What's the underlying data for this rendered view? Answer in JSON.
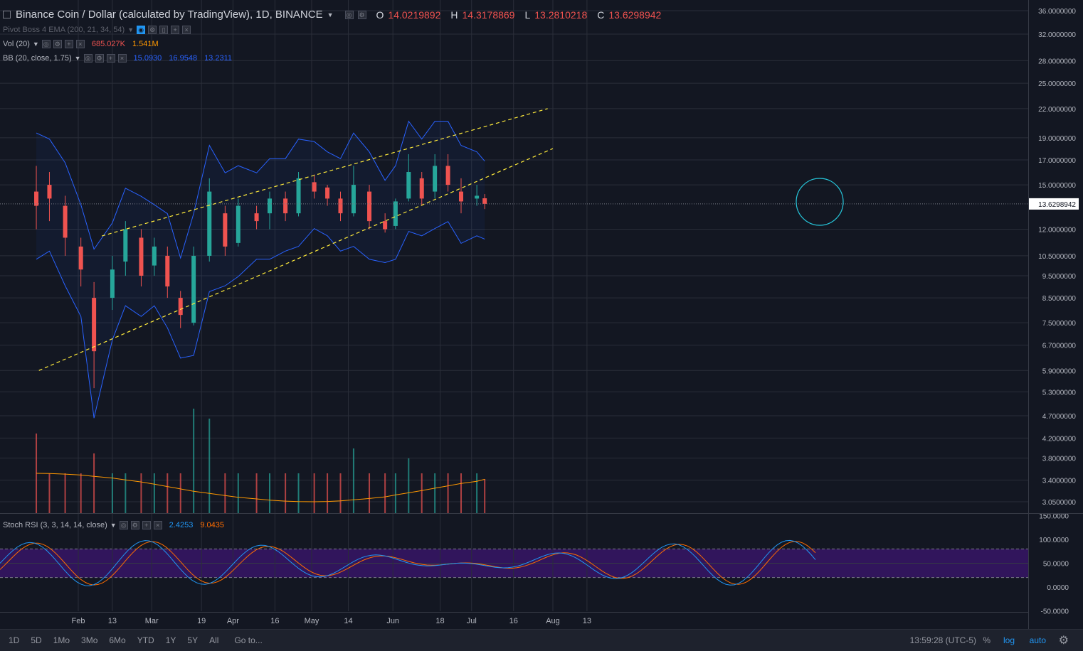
{
  "header": {
    "title": "Binance Coin / Dollar (calculated by TradingView), 1D, BINANCE",
    "o_label": "O",
    "o_value": "14.0219892",
    "h_label": "H",
    "h_value": "14.3178869",
    "l_label": "L",
    "l_value": "13.2810218",
    "c_label": "C",
    "c_value": "13.6298942"
  },
  "indicators": [
    {
      "name": "Pivot Boss 4 EMA (200, 21, 34, 54)",
      "values": []
    },
    {
      "name": "Vol (20)",
      "values": [
        "685.027K",
        "1.541M"
      ],
      "colors": [
        "#ef5350",
        "#ff9800"
      ]
    },
    {
      "name": "BB (20, close, 1.75)",
      "values": [
        "15.0930",
        "16.9548",
        "13.2311"
      ],
      "colors": [
        "#2962ff",
        "#2962ff",
        "#2962ff"
      ]
    }
  ],
  "stoch": {
    "name": "Stoch RSI (3, 3, 14, 14, close)",
    "k": "2.4253",
    "d": "9.0435",
    "k_color": "#2196f3",
    "d_color": "#ff6d00"
  },
  "price_axis": {
    "labels": [
      "36.0000000",
      "32.0000000",
      "28.0000000",
      "25.0000000",
      "22.0000000",
      "19.0000000",
      "17.0000000",
      "15.0000000",
      "13.6298942",
      "12.0000000",
      "10.5000000",
      "9.5000000",
      "8.5000000",
      "7.5000000",
      "6.7000000",
      "5.9000000",
      "5.3000000",
      "4.7000000",
      "4.2000000",
      "3.8000000",
      "3.4000000",
      "3.0500000"
    ],
    "current": "13.6298942"
  },
  "stoch_axis": {
    "labels": [
      "150.0000",
      "100.0000",
      "50.0000",
      "0.0000",
      "-50.0000"
    ]
  },
  "time_axis": {
    "labels": [
      "Feb",
      "13",
      "Mar",
      "19",
      "Apr",
      "16",
      "May",
      "14",
      "Jun",
      "18",
      "Jul",
      "16",
      "Aug",
      "13"
    ]
  },
  "bottom_bar": {
    "ranges": [
      "1D",
      "5D",
      "1Mo",
      "3Mo",
      "6Mo",
      "YTD",
      "1Y",
      "5Y",
      "All"
    ],
    "goto": "Go to...",
    "clock": "13:59:28 (UTC-5)",
    "percent": "%",
    "log": "log",
    "auto": "auto"
  },
  "colors": {
    "up": "#26a69a",
    "down": "#ef5350",
    "bb": "#2962ff",
    "trend": "#ffeb3b",
    "vol_ma": "#ff9800",
    "circle": "#26c6da",
    "stoch_band": "#4a148c"
  },
  "chart_data": {
    "type": "candlestick",
    "title": "Binance Coin / Dollar (calculated by TradingView), 1D, BINANCE",
    "scale": "log",
    "series": [
      {
        "name": "price",
        "points": [
          [
            "01-15",
            14.5,
            16.5,
            12.0,
            13.5
          ],
          [
            "01-20",
            15.0,
            16.0,
            12.5,
            14.0
          ],
          [
            "01-26",
            13.5,
            14.2,
            10.5,
            11.5
          ],
          [
            "02-01",
            11.0,
            11.5,
            9.0,
            9.8
          ],
          [
            "02-06",
            8.5,
            9.2,
            5.4,
            6.5
          ],
          [
            "02-13",
            8.5,
            10.5,
            8.0,
            9.8
          ],
          [
            "02-18",
            10.2,
            12.5,
            9.5,
            12.0
          ],
          [
            "02-24",
            11.5,
            12.0,
            9.0,
            9.5
          ],
          [
            "03-01",
            10.0,
            11.5,
            9.5,
            11.0
          ],
          [
            "03-06",
            10.5,
            11.0,
            8.5,
            9.0
          ],
          [
            "03-11",
            8.5,
            8.8,
            7.3,
            7.8
          ],
          [
            "03-16",
            7.5,
            11.0,
            7.4,
            10.5
          ],
          [
            "03-22",
            10.5,
            15.5,
            10.2,
            14.5
          ],
          [
            "03-28",
            13.0,
            13.5,
            10.5,
            11.0
          ],
          [
            "04-02",
            11.2,
            14.0,
            11.0,
            13.5
          ],
          [
            "04-09",
            13.0,
            13.5,
            12.0,
            12.5
          ],
          [
            "04-14",
            13.0,
            14.5,
            12.0,
            14.0
          ],
          [
            "04-20",
            14.0,
            14.5,
            12.5,
            13.0
          ],
          [
            "04-25",
            13.0,
            16.0,
            12.8,
            15.5
          ],
          [
            "05-01",
            15.2,
            15.8,
            14.0,
            14.5
          ],
          [
            "05-06",
            14.8,
            15.0,
            13.5,
            14.0
          ],
          [
            "05-11",
            14.0,
            14.5,
            12.5,
            13.0
          ],
          [
            "05-16",
            13.0,
            16.5,
            12.8,
            15.0
          ],
          [
            "05-22",
            14.5,
            15.0,
            12.0,
            12.5
          ],
          [
            "05-28",
            12.5,
            13.0,
            11.8,
            12.0
          ],
          [
            "06-01",
            12.2,
            14.0,
            12.0,
            13.8
          ],
          [
            "06-06",
            14.0,
            17.5,
            13.8,
            16.0
          ],
          [
            "06-11",
            15.5,
            16.0,
            13.5,
            14.0
          ],
          [
            "06-16",
            14.5,
            17.5,
            14.0,
            16.5
          ],
          [
            "06-21",
            16.5,
            17.5,
            14.5,
            15.0
          ],
          [
            "06-26",
            14.5,
            15.5,
            13.0,
            13.8
          ],
          [
            "07-02",
            14.0,
            15.0,
            13.5,
            14.2
          ],
          [
            "07-05",
            14.02,
            14.32,
            13.28,
            13.63
          ]
        ]
      },
      {
        "name": "Vol (20)",
        "points": [
          [
            "01-15",
            1.6
          ],
          [
            "02-06",
            1.2
          ],
          [
            "03-16",
            2.1
          ],
          [
            "03-22",
            1.9
          ],
          [
            "05-16",
            1.3
          ],
          [
            "06-06",
            1.1
          ],
          [
            "07-05",
            0.685
          ]
        ]
      }
    ],
    "ylim": [
      3.05,
      36
    ],
    "legend": "top-left"
  }
}
